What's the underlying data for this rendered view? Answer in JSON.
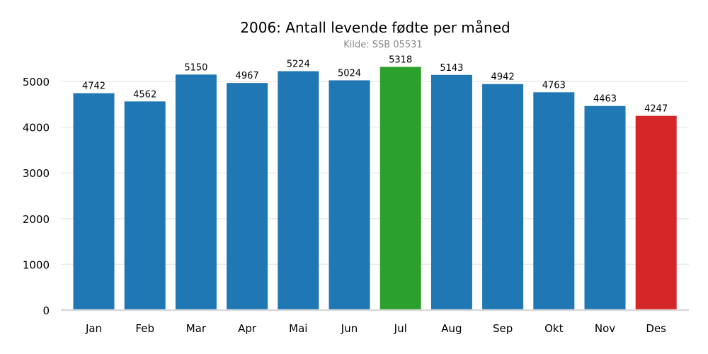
{
  "chart_data": {
    "type": "bar",
    "title": "2006: Antall levende fødte per måned",
    "subtitle": "Kilde: SSB 05531",
    "xlabel": "",
    "ylabel": "",
    "categories": [
      "Jan",
      "Feb",
      "Mar",
      "Apr",
      "Mai",
      "Jun",
      "Jul",
      "Aug",
      "Sep",
      "Okt",
      "Nov",
      "Des"
    ],
    "values": [
      4742,
      4562,
      5150,
      4967,
      5224,
      5024,
      5318,
      5143,
      4942,
      4763,
      4463,
      4247
    ],
    "ylim": [
      0,
      5600
    ],
    "yticks": [
      0,
      1000,
      2000,
      3000,
      4000,
      5000
    ],
    "grid": true,
    "legend": "none",
    "colors": {
      "default": "#1f77b4",
      "max": "#2ca02c",
      "min": "#d62728",
      "grid": "#ebebeb",
      "baseline": "#d9d9d9"
    }
  }
}
